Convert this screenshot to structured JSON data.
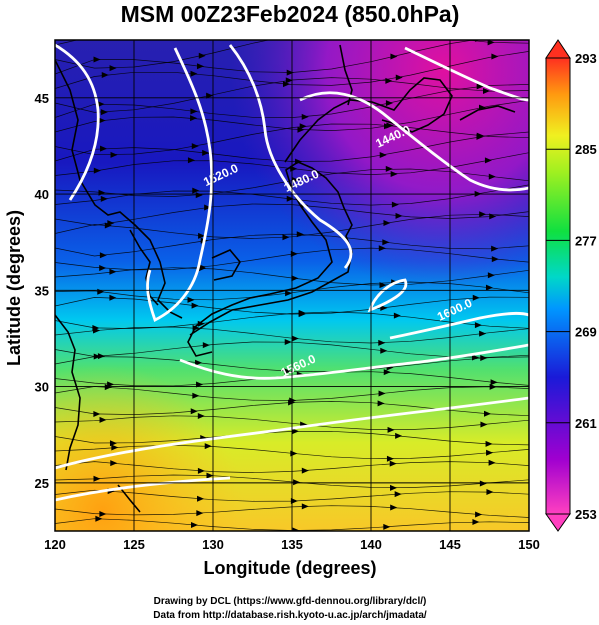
{
  "title": "MSM 00Z23Feb2024 (850.0hPa)",
  "xlabel": "Longitude (degrees)",
  "ylabel": "Latitude  (degrees)",
  "credit_line1": "Drawing by DCL (https://www.gfd-dennou.org/library/dcl/)",
  "credit_line2": "Data from http://database.rish.kyoto-u.ac.jp/arch/jmadata/",
  "chart_data": {
    "type": "heatmap",
    "xlim": [
      120,
      150
    ],
    "ylim": [
      22.5,
      48
    ],
    "xticks": [
      "120",
      "125",
      "130",
      "135",
      "140",
      "145",
      "150"
    ],
    "yticks": [
      "25",
      "30",
      "35",
      "40",
      "45"
    ],
    "xtick_values": [
      120,
      125,
      130,
      135,
      140,
      145,
      150
    ],
    "ytick_values": [
      25,
      30,
      35,
      40,
      45
    ],
    "grid": true,
    "colorbar": {
      "min": 253,
      "max": 293,
      "labels": [
        "293",
        "285",
        "277",
        "269",
        "261",
        "253"
      ],
      "label_values": [
        293,
        285,
        277,
        269,
        261,
        253
      ]
    },
    "contour_labels": [
      {
        "text": "1440.0",
        "lon": 141.5,
        "lat": 42.8
      },
      {
        "text": "1480.0",
        "lon": 135.7,
        "lat": 40.5
      },
      {
        "text": "1520.0",
        "lon": 130.6,
        "lat": 40.8
      },
      {
        "text": "1560.0",
        "lon": 135.5,
        "lat": 30.9
      },
      {
        "text": "1600.0",
        "lon": 145.4,
        "lat": 33.8
      }
    ]
  }
}
